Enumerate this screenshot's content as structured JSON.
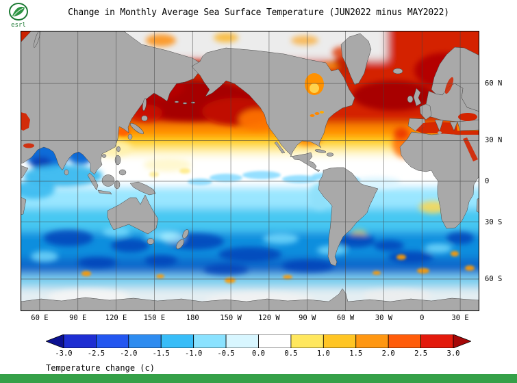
{
  "header": {
    "title": "Change in Monthly Average Sea Surface Temperature (JUN2022 minus MAY2022)",
    "logo_text": "esrl"
  },
  "map": {
    "projection": "mercator",
    "left_lon": 45,
    "land_color": "#a9a9a9",
    "grid_color": "#444444",
    "lat_ticks": [
      {
        "label": "60 N",
        "lat": 60
      },
      {
        "label": "30 N",
        "lat": 30
      },
      {
        "label": "0",
        "lat": 0
      },
      {
        "label": "30 S",
        "lat": -30
      },
      {
        "label": "60 S",
        "lat": -60
      }
    ],
    "lon_ticks": [
      {
        "label": "60 E",
        "lon": 60
      },
      {
        "label": "90 E",
        "lon": 90
      },
      {
        "label": "120 E",
        "lon": 120
      },
      {
        "label": "150 E",
        "lon": 150
      },
      {
        "label": "180",
        "lon": 180
      },
      {
        "label": "150 W",
        "lon": 210
      },
      {
        "label": "120 W",
        "lon": 240
      },
      {
        "label": "90 W",
        "lon": 270
      },
      {
        "label": "60 W",
        "lon": 300
      },
      {
        "label": "30 W",
        "lon": 330
      },
      {
        "label": "0",
        "lon": 360
      },
      {
        "label": "30 E",
        "lon": 390
      }
    ]
  },
  "colorbar": {
    "title": "Temperature change  (c)",
    "tick_labels": [
      "-3.0",
      "-2.5",
      "-2.0",
      "-1.5",
      "-1.0",
      "-0.5",
      "0.0",
      "0.5",
      "1.0",
      "1.5",
      "2.0",
      "2.5",
      "3.0"
    ],
    "segment_colors": [
      "#1e2ed2",
      "#2356f0",
      "#2e8cf0",
      "#38bdf8",
      "#8ae2ff",
      "#d8f6ff",
      "#ffffff",
      "#ffe75e",
      "#ffc524",
      "#ff9712",
      "#ff5c0a",
      "#e31a0c"
    ],
    "arrow_left_color": "#0c1192",
    "arrow_right_color": "#a50808"
  },
  "footer": {
    "color": "#35a048"
  }
}
